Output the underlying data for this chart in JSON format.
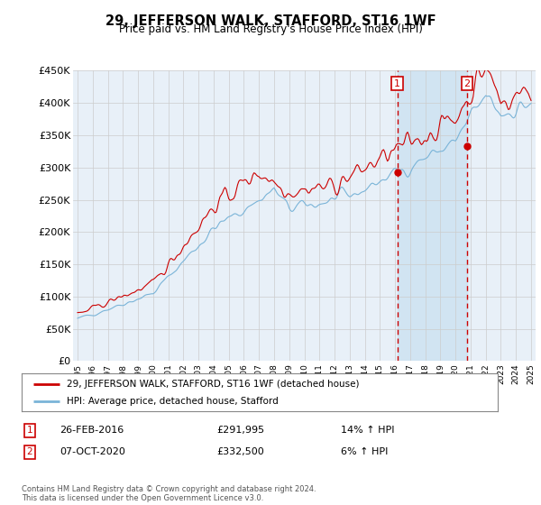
{
  "title": "29, JEFFERSON WALK, STAFFORD, ST16 1WF",
  "subtitle": "Price paid vs. HM Land Registry's House Price Index (HPI)",
  "background_color": "#ffffff",
  "plot_bg_color": "#e8f0f8",
  "grid_color": "#cccccc",
  "ylim": [
    0,
    450000
  ],
  "yticks": [
    0,
    50000,
    100000,
    150000,
    200000,
    250000,
    300000,
    350000,
    400000,
    450000
  ],
  "ytick_labels": [
    "£0",
    "£50K",
    "£100K",
    "£150K",
    "£200K",
    "£250K",
    "£300K",
    "£350K",
    "£400K",
    "£450K"
  ],
  "hpi_color": "#7ab4d8",
  "price_color": "#cc0000",
  "vline_color": "#cc0000",
  "annotation_box_color": "#cc0000",
  "shade_color": "#c8dff0",
  "legend_label_price": "29, JEFFERSON WALK, STAFFORD, ST16 1WF (detached house)",
  "legend_label_hpi": "HPI: Average price, detached house, Stafford",
  "sale1_date": "26-FEB-2016",
  "sale1_price": 291995,
  "sale1_hpi_pct": "14%",
  "sale2_date": "07-OCT-2020",
  "sale2_price": 332500,
  "sale2_hpi_pct": "6%",
  "footer": "Contains HM Land Registry data © Crown copyright and database right 2024.\nThis data is licensed under the Open Government Licence v3.0.",
  "sale1_x": 2016.15,
  "sale2_x": 2020.77,
  "xlim_left": 1994.7,
  "xlim_right": 2025.3
}
